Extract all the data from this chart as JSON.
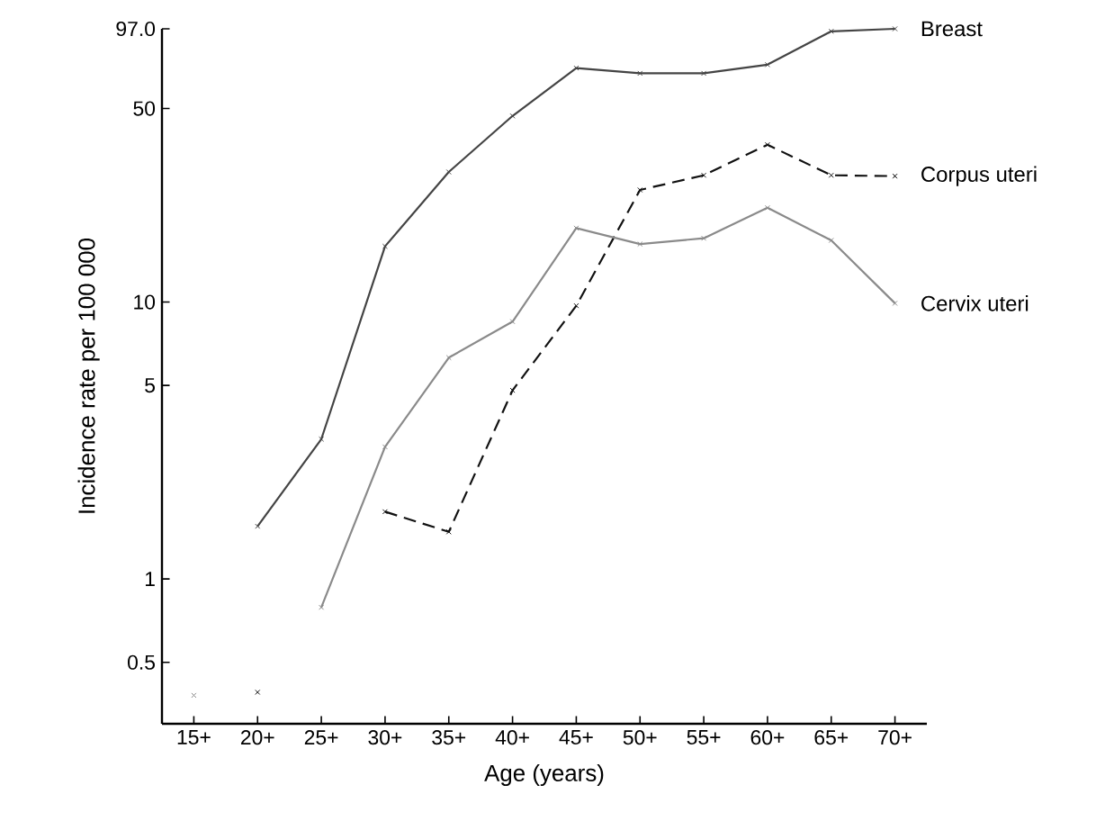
{
  "chart_data": {
    "type": "line",
    "xlabel": "Age (years)",
    "ylabel": "Incidence rate per 100 000",
    "log": "y",
    "marker": "cross",
    "categories": [
      "15+",
      "20+",
      "25+",
      "30+",
      "35+",
      "40+",
      "45+",
      "50+",
      "55+",
      "60+",
      "65+",
      "70+"
    ],
    "ylim": [
      0.3,
      97
    ],
    "yticks": [
      0.5,
      1,
      5,
      10,
      50,
      {
        "value": 97,
        "label": "97.0"
      }
    ],
    "series": [
      {
        "name": "Breast",
        "color": "#444444",
        "line_style": "solid",
        "values": [
          null,
          1.55,
          3.2,
          15.9,
          29.5,
          47,
          70,
          67,
          67,
          72,
          95,
          97
        ]
      },
      {
        "name": "Corpus uteri",
        "color": "#111111",
        "line_style": "dashed",
        "values": [
          null,
          0.39,
          null,
          1.75,
          1.48,
          4.8,
          9.7,
          25.4,
          28.7,
          37,
          28.7,
          28.5
        ]
      },
      {
        "name": "Cervix uteri",
        "color": "#8a8a8a",
        "line_style": "solid",
        "values": [
          0.38,
          null,
          0.79,
          3.0,
          6.3,
          8.5,
          18.5,
          16.2,
          17,
          21.9,
          16.7,
          9.9
        ]
      }
    ]
  }
}
